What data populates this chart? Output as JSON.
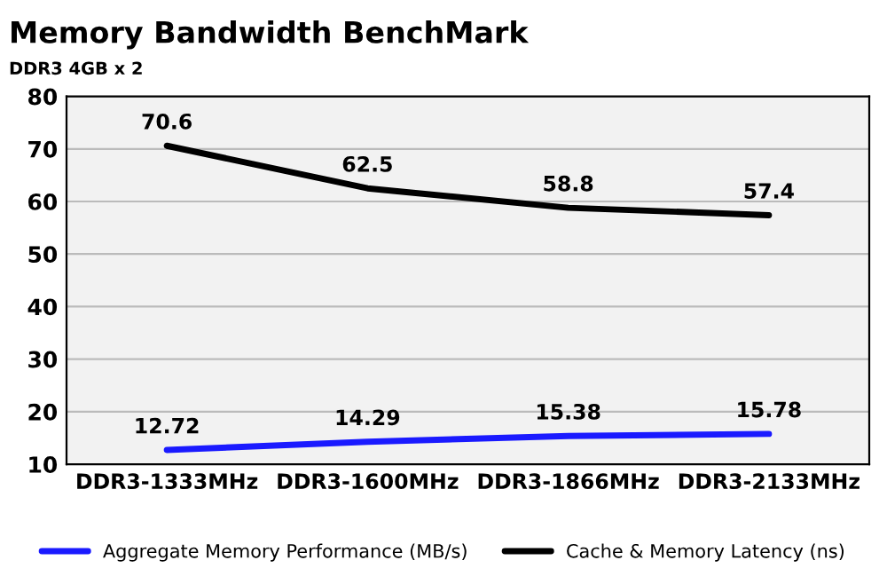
{
  "chart_data": {
    "type": "line",
    "title": "Memory Bandwidth BenchMark",
    "subtitle": "DDR3 4GB x 2",
    "categories": [
      "DDR3-1333MHz",
      "DDR3-1600MHz",
      "DDR3-1866MHz",
      "DDR3-2133MHz"
    ],
    "series": [
      {
        "name": "Aggregate Memory Performance (MB/s)",
        "color": "#1a1aff",
        "values": [
          12.72,
          14.29,
          15.38,
          15.78
        ]
      },
      {
        "name": "Cache & Memory Latency (ns)",
        "color": "#000000",
        "values": [
          70.6,
          62.5,
          58.8,
          57.4
        ]
      }
    ],
    "ylim": [
      10,
      80
    ],
    "yticks": [
      10,
      20,
      30,
      40,
      50,
      60,
      70,
      80
    ],
    "grid": "y",
    "legend": "bottom",
    "data_labels": true,
    "marker": "none",
    "line_style": "solid"
  }
}
